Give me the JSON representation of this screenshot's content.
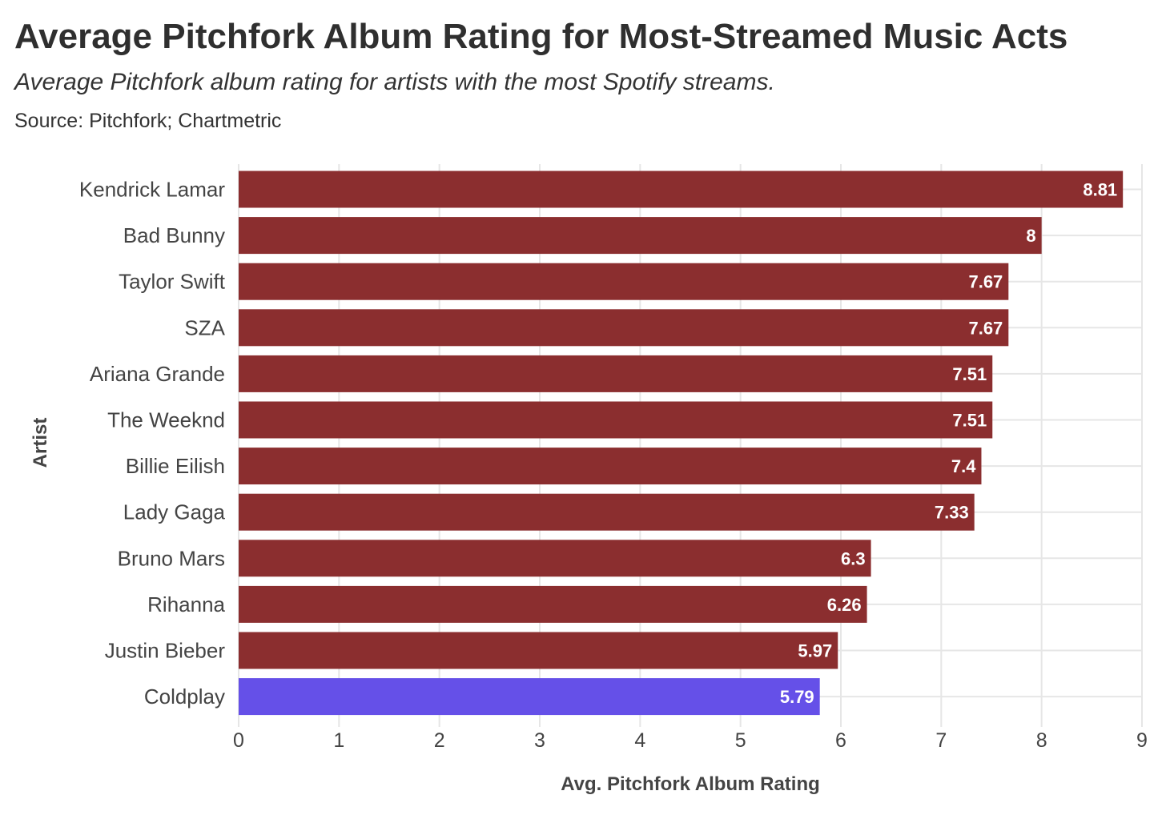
{
  "title": "Average Pitchfork Album Rating for Most-Streamed Music Acts",
  "subtitle": "Average Pitchfork album rating for artists with the most Spotify streams.",
  "source": "Source: Pitchfork; Chartmetric",
  "colors": {
    "default_bar": "#8B2E2F",
    "highlight_bar": "#6550E8",
    "grid": "#e6e6e6",
    "text": "#333333"
  },
  "chart_data": {
    "type": "bar",
    "orientation": "horizontal",
    "xlabel": "Avg. Pitchfork Album Rating",
    "ylabel": "Artist",
    "xlim": [
      0,
      9
    ],
    "xticks": [
      0,
      1,
      2,
      3,
      4,
      5,
      6,
      7,
      8,
      9
    ],
    "grid": true,
    "categories": [
      "Kendrick Lamar",
      "Bad Bunny",
      "Taylor Swift",
      "SZA",
      "Ariana Grande",
      "The Weeknd",
      "Billie Eilish",
      "Lady Gaga",
      "Bruno Mars",
      "Rihanna",
      "Justin Bieber",
      "Coldplay"
    ],
    "values": [
      8.81,
      8,
      7.67,
      7.67,
      7.51,
      7.51,
      7.4,
      7.33,
      6.3,
      6.26,
      5.97,
      5.79
    ],
    "value_labels": [
      "8.81",
      "8",
      "7.67",
      "7.67",
      "7.51",
      "7.51",
      "7.4",
      "7.33",
      "6.3",
      "6.26",
      "5.97",
      "5.79"
    ],
    "highlight": "Coldplay"
  }
}
